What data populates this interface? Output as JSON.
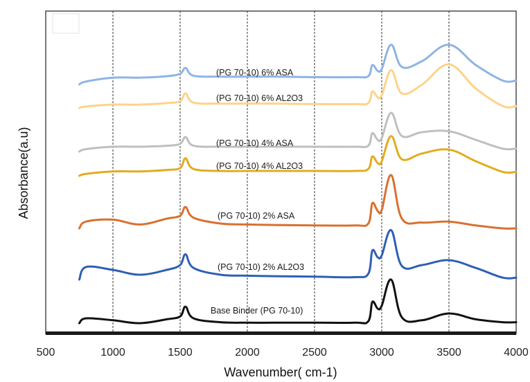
{
  "chart_data": {
    "type": "line",
    "title": "",
    "xlabel": "Wavenumber( cm-1)",
    "ylabel": "Absorbance(a.u)",
    "xlim": [
      500,
      4000
    ],
    "x_ticks": [
      500,
      1000,
      1500,
      2000,
      2500,
      3000,
      3500,
      4000
    ],
    "x_tick_labels": [
      "500",
      "1000",
      "1500",
      "2000",
      "2500",
      "3000",
      "3500",
      "4000"
    ],
    "grid": "vertical dashed",
    "legend": "inline labels",
    "y_units": "arbitrary (stacked, offset)",
    "series": [
      {
        "name": "(PG 70-10) 6% ASA",
        "color": "#8eb4e3",
        "x": [
          750,
          800,
          1000,
          1200,
          1400,
          1500,
          1540,
          1600,
          1800,
          2000,
          2200,
          2500,
          2800,
          2900,
          2930,
          2970,
          3000,
          3070,
          3150,
          3300,
          3500,
          3700,
          3900,
          4000
        ],
        "y": [
          0.0,
          0.06,
          0.14,
          0.14,
          0.17,
          0.22,
          0.34,
          0.18,
          0.16,
          0.16,
          0.16,
          0.15,
          0.15,
          0.17,
          0.4,
          0.28,
          0.32,
          0.82,
          0.36,
          0.48,
          0.82,
          0.4,
          0.08,
          0.08
        ]
      },
      {
        "name": "(PG 70-10) 6% AL2O3",
        "color": "#ffd28a",
        "x": [
          750,
          800,
          1000,
          1200,
          1400,
          1500,
          1540,
          1600,
          1800,
          2000,
          2200,
          2500,
          2800,
          2900,
          2930,
          2970,
          3000,
          3070,
          3150,
          3300,
          3500,
          3700,
          3900,
          4000
        ],
        "y": [
          0.0,
          0.03,
          0.07,
          0.07,
          0.1,
          0.14,
          0.3,
          0.11,
          0.09,
          0.09,
          0.09,
          0.08,
          0.08,
          0.1,
          0.34,
          0.22,
          0.26,
          0.78,
          0.3,
          0.48,
          0.9,
          0.4,
          0.04,
          0.04
        ]
      },
      {
        "name": "(PG 70-10) 4% ASA",
        "color": "#bfbfbf",
        "x": [
          750,
          800,
          1000,
          1200,
          1400,
          1500,
          1540,
          1600,
          1800,
          2000,
          2200,
          2500,
          2800,
          2900,
          2930,
          2970,
          3000,
          3070,
          3150,
          3300,
          3500,
          3700,
          3900,
          4000
        ],
        "y": [
          0.0,
          0.05,
          0.1,
          0.1,
          0.12,
          0.16,
          0.3,
          0.12,
          0.1,
          0.1,
          0.1,
          0.1,
          0.1,
          0.12,
          0.38,
          0.24,
          0.28,
          0.8,
          0.32,
          0.4,
          0.42,
          0.24,
          0.06,
          0.06
        ]
      },
      {
        "name": "(PG 70-10) 4% AL2O3",
        "color": "#e2ac1f",
        "x": [
          750,
          800,
          1000,
          1200,
          1400,
          1500,
          1540,
          1600,
          1800,
          2000,
          2200,
          2500,
          2800,
          2900,
          2930,
          2970,
          3000,
          3070,
          3150,
          3300,
          3500,
          3700,
          3900,
          4000
        ],
        "y": [
          0.0,
          0.04,
          0.09,
          0.09,
          0.12,
          0.16,
          0.36,
          0.14,
          0.1,
          0.1,
          0.1,
          0.1,
          0.1,
          0.14,
          0.4,
          0.26,
          0.3,
          0.82,
          0.34,
          0.46,
          0.54,
          0.3,
          0.08,
          0.08
        ]
      },
      {
        "name": "(PG 70-10) 2% ASA",
        "color": "#d9702f",
        "x": [
          750,
          800,
          1000,
          1200,
          1400,
          1500,
          1540,
          1600,
          1800,
          2000,
          2200,
          2500,
          2800,
          2900,
          2930,
          2970,
          3000,
          3070,
          3150,
          3300,
          3500,
          3700,
          3900,
          4000
        ],
        "y": [
          0.0,
          0.14,
          0.18,
          0.08,
          0.2,
          0.26,
          0.44,
          0.22,
          0.1,
          0.08,
          0.07,
          0.06,
          0.06,
          0.1,
          0.52,
          0.36,
          0.38,
          1.1,
          0.2,
          0.12,
          0.14,
          0.06,
          0.0,
          0.0
        ]
      },
      {
        "name": "(PG 70-10) 2% AL2O3",
        "color": "#2e5fb4",
        "x": [
          750,
          800,
          1000,
          1200,
          1400,
          1500,
          1540,
          1600,
          1800,
          2000,
          2200,
          2500,
          2800,
          2900,
          2930,
          2970,
          3000,
          3070,
          3150,
          3300,
          3500,
          3700,
          3900,
          4000
        ],
        "y": [
          0.0,
          0.26,
          0.2,
          0.1,
          0.2,
          0.3,
          0.52,
          0.24,
          0.1,
          0.08,
          0.07,
          0.06,
          0.05,
          0.12,
          0.6,
          0.46,
          0.5,
          1.02,
          0.28,
          0.3,
          0.4,
          0.24,
          0.04,
          0.04
        ]
      },
      {
        "name": "Base Binder (PG 70-10)",
        "color": "#111111",
        "x": [
          750,
          800,
          1000,
          1200,
          1400,
          1500,
          1540,
          1600,
          1800,
          2000,
          2200,
          2500,
          2800,
          2900,
          2930,
          2970,
          3000,
          3070,
          3150,
          3300,
          3500,
          3700,
          3900,
          4000
        ],
        "y": [
          0.0,
          0.1,
          0.06,
          0.0,
          0.08,
          0.14,
          0.34,
          0.1,
          0.02,
          0.01,
          0.01,
          0.01,
          0.01,
          0.04,
          0.44,
          0.3,
          0.36,
          0.9,
          0.12,
          0.06,
          0.2,
          0.08,
          0.02,
          0.02
        ]
      }
    ],
    "annotations": [
      {
        "text": "(PG 70-10) 6% ASA",
        "series": 0
      },
      {
        "text": "(PG 70-10) 6% AL2O3",
        "series": 1
      },
      {
        "text": "(PG 70-10) 4% ASA",
        "series": 2
      },
      {
        "text": "(PG 70-10) 4% AL2O3",
        "series": 3
      },
      {
        "text": "(PG 70-10) 2% ASA",
        "series": 4
      },
      {
        "text": "(PG 70-10) 2% AL2O3",
        "series": 5
      },
      {
        "text": "Base Binder (PG 70-10)",
        "series": 6
      }
    ]
  }
}
